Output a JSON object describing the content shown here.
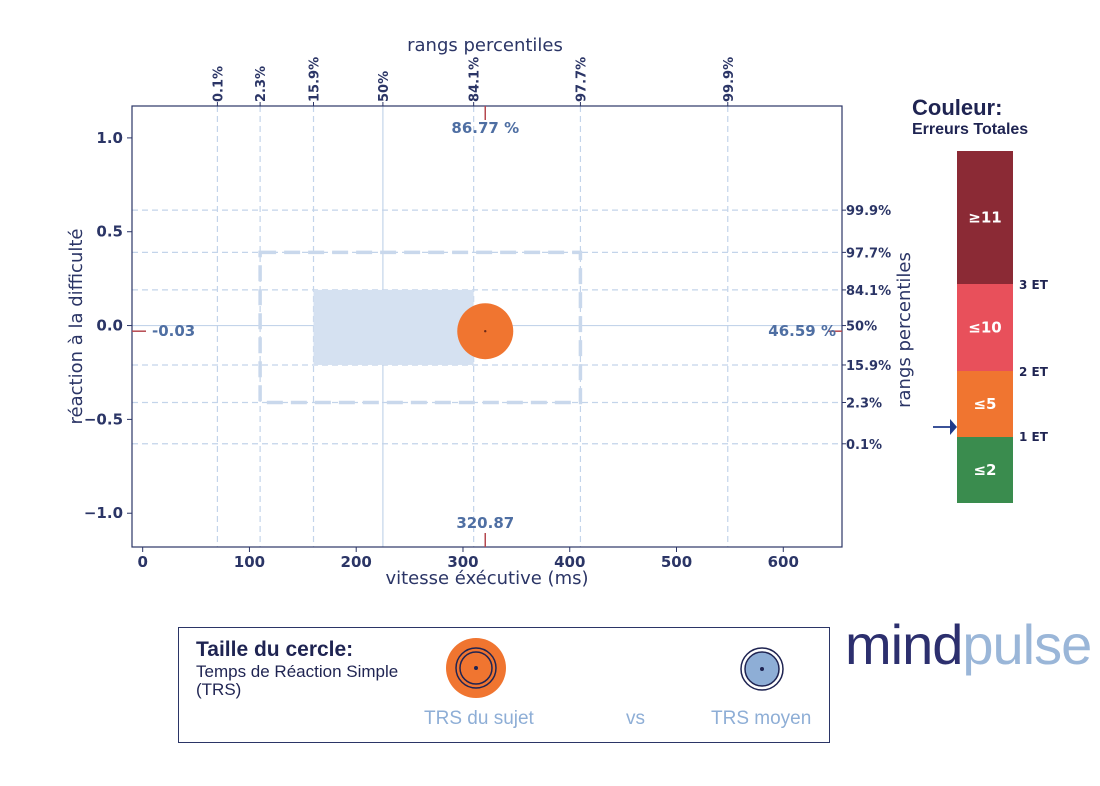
{
  "chart_data": {
    "type": "scatter",
    "xlabel": "vitesse éxécutive (ms)",
    "ylabel": "réaction à la difficulté",
    "top_axis_label": "rangs percentiles",
    "right_axis_label": "rangs percentiles",
    "xlim": [
      -10,
      655
    ],
    "ylim": [
      -1.18,
      1.17
    ],
    "x_ticks": [
      0,
      100,
      200,
      300,
      400,
      500,
      600
    ],
    "y_ticks": [
      1.0,
      0.5,
      0.0,
      -0.5,
      -1.0
    ],
    "y_tick_labels": [
      "1.0",
      "0.5",
      "0.0",
      "−0.5",
      "−1.0"
    ],
    "top_percentiles": [
      {
        "x": 70,
        "label": "0.1%"
      },
      {
        "x": 110,
        "label": "2.3%"
      },
      {
        "x": 160,
        "label": "15.9%"
      },
      {
        "x": 225,
        "label": "50%"
      },
      {
        "x": 310,
        "label": "84.1%"
      },
      {
        "x": 410,
        "label": "97.7%"
      },
      {
        "x": 548,
        "label": "99.9%"
      }
    ],
    "right_percentiles": [
      {
        "y": 0.615,
        "label": "99.9%"
      },
      {
        "y": 0.39,
        "label": "97.7%"
      },
      {
        "y": 0.19,
        "label": "84.1%"
      },
      {
        "y": 0.0,
        "label": "50%"
      },
      {
        "y": -0.21,
        "label": "15.9%"
      },
      {
        "y": -0.41,
        "label": "2.3%"
      },
      {
        "y": -0.63,
        "label": "0.1%"
      }
    ],
    "inner_box": {
      "x0": 160,
      "x1": 310,
      "y0": -0.21,
      "y1": 0.19
    },
    "outer_box": {
      "x0": 110,
      "x1": 410,
      "y0": -0.41,
      "y1": 0.39
    },
    "subject_point": {
      "x": 320.87,
      "y": -0.03,
      "color": "#f07530"
    },
    "x_marker_label": "320.87",
    "y_marker_label": "-0.03",
    "top_marker_label": "86.77 %",
    "right_marker_label": "46.59 %",
    "colorbar": {
      "title": "Couleur:",
      "subtitle": "Erreurs Totales",
      "segments": [
        {
          "label": "≥11",
          "color": "#8b2a35"
        },
        {
          "label": "≤10",
          "color": "#e8505b"
        },
        {
          "label": "≤5",
          "color": "#f07530"
        },
        {
          "label": "≤2",
          "color": "#3a8c4e"
        }
      ],
      "thresholds": [
        "3 ET",
        "2 ET",
        "1 ET"
      ]
    }
  },
  "legend": {
    "title": "Taille du cercle:",
    "subtitle": "Temps de Réaction Simple (TRS)",
    "subject_label": "TRS du sujet",
    "vs_label": "vs",
    "mean_label": "TRS moyen"
  },
  "brand": {
    "part1": "mind",
    "part2": "pulse"
  }
}
